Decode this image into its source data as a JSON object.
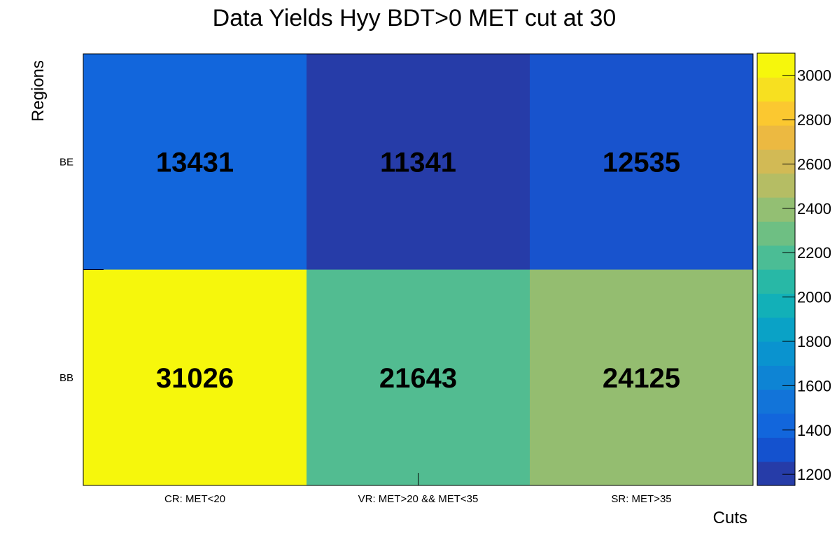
{
  "chart_data": {
    "type": "heatmap",
    "title": "Data Yields Hyy BDT>0 MET cut at 30",
    "xlabel": "Cuts",
    "ylabel": "Regions",
    "x_categories": [
      "CR: MET<20",
      "VR: MET>20 && MET<35",
      "SR: MET>35"
    ],
    "y_categories": [
      "BB",
      "BE"
    ],
    "cells": [
      {
        "x": "CR: MET<20",
        "y": "BE",
        "value": 13431,
        "label": "13431",
        "color": "#1266dc"
      },
      {
        "x": "VR: MET>20 && MET<35",
        "y": "BE",
        "value": 11341,
        "label": "11341",
        "color": "#263ca8"
      },
      {
        "x": "SR: MET>35",
        "y": "BE",
        "value": 12535,
        "label": "12535",
        "color": "#1853cd"
      },
      {
        "x": "CR: MET<20",
        "y": "BB",
        "value": 31026,
        "label": "31026",
        "color": "#f6f70c"
      },
      {
        "x": "VR: MET>20 && MET<35",
        "y": "BB",
        "value": 21643,
        "label": "21643",
        "color": "#52bc91"
      },
      {
        "x": "SR: MET>35",
        "y": "BB",
        "value": 24125,
        "label": "24125",
        "color": "#94bd70"
      }
    ],
    "colorbar": {
      "range": [
        1150,
        3100
      ],
      "ticks": [
        "1200",
        "1400",
        "1600",
        "1800",
        "2000",
        "2200",
        "2400",
        "2600",
        "2800",
        "3000"
      ],
      "colors": [
        "#263ca8",
        "#1452cf",
        "#1266dc",
        "#1274d9",
        "#0e84d4",
        "#0a93cf",
        "#0aa2c6",
        "#12b0b8",
        "#28b8a6",
        "#4bbd95",
        "#6ebf83",
        "#93bf73",
        "#b5bd64",
        "#d2ba55",
        "#ecb941",
        "#fbc830",
        "#f7e020",
        "#f6f70c"
      ]
    }
  }
}
